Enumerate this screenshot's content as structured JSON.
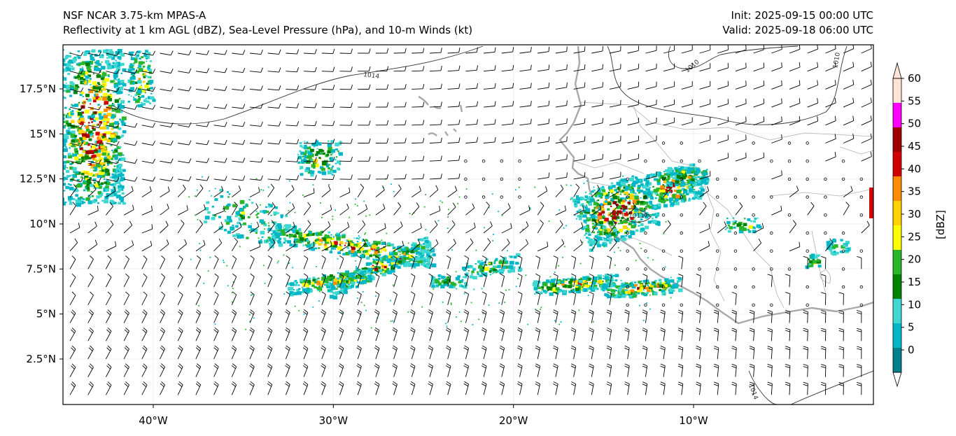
{
  "header": {
    "model": "NSF NCAR 3.75-km MPAS-A",
    "fields": "Reflectivity at 1 km AGL (dBZ), Sea-Level Pressure (hPa), and 10-m Winds (kt)",
    "init": "Init: 2025-09-15 00:00 UTC",
    "valid": "Valid: 2025-09-18 06:00 UTC"
  },
  "map": {
    "lon_range": [
      -45,
      0
    ],
    "lat_range": [
      0,
      20
    ],
    "lat_ticks": [
      {
        "value": 2.5,
        "label": "2.5°N"
      },
      {
        "value": 5,
        "label": "5°N"
      },
      {
        "value": 7.5,
        "label": "7.5°N"
      },
      {
        "value": 10,
        "label": "10°N"
      },
      {
        "value": 12.5,
        "label": "12.5°N"
      },
      {
        "value": 15,
        "label": "15°N"
      },
      {
        "value": 17.5,
        "label": "17.5°N"
      }
    ],
    "lon_ticks": [
      {
        "value": -40,
        "label": "40°W"
      },
      {
        "value": -30,
        "label": "30°W"
      },
      {
        "value": -20,
        "label": "20°W"
      },
      {
        "value": -10,
        "label": "10°W"
      }
    ],
    "isobar_labels": [
      "1014",
      "1010",
      "1010",
      "1014",
      "1011"
    ]
  },
  "colorbar": {
    "label": "[dBZ]",
    "ticks": [
      "0",
      "5",
      "10",
      "15",
      "20",
      "25",
      "30",
      "35",
      "40",
      "45",
      "50",
      "55",
      "60"
    ],
    "colors": [
      "#ffffff",
      "#00808a",
      "#00b7c7",
      "#3fd8d0",
      "#008200",
      "#2bb52b",
      "#ffff00",
      "#ffd200",
      "#ff8c00",
      "#d20000",
      "#a00000",
      "#ff00ff",
      "#ffe4d6"
    ]
  }
}
